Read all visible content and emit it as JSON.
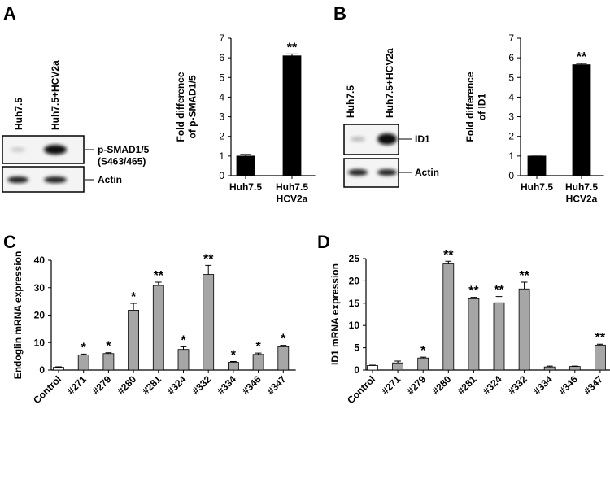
{
  "panels": [
    "A",
    "B",
    "C",
    "D"
  ],
  "blot_a": {
    "lanes": [
      "Huh7.5",
      "Huh7.5+HCV2a"
    ],
    "labels": [
      "p-SMAD1/5\n(S463/465)",
      "Actin"
    ]
  },
  "blot_b": {
    "lanes": [
      "Huh7.5",
      "Huh7.5+HCV2a"
    ],
    "labels": [
      "ID1",
      "Actin"
    ]
  },
  "chart_data": [
    {
      "type": "bar",
      "ylabel": "Fold difference\nof p-SMAD1/5",
      "categories": [
        "Huh7.5",
        "Huh7.5\nHCV2a"
      ],
      "values": [
        1,
        6.1
      ],
      "errors": [
        0.08,
        0.1
      ],
      "annotations": [
        null,
        "**"
      ],
      "colors": [
        "#000000",
        "#000000"
      ],
      "ylim": [
        0,
        7
      ],
      "yticks": [
        0,
        1,
        2,
        3,
        4,
        5,
        6,
        7
      ]
    },
    {
      "type": "bar",
      "ylabel": "Fold difference\nof ID1",
      "categories": [
        "Huh7.5",
        "Huh7.5\nHCV2a"
      ],
      "values": [
        1,
        5.65
      ],
      "errors": [
        0,
        0.06
      ],
      "annotations": [
        null,
        "**"
      ],
      "colors": [
        "#000000",
        "#000000"
      ],
      "ylim": [
        0,
        7
      ],
      "yticks": [
        0,
        1,
        2,
        3,
        4,
        5,
        6,
        7
      ]
    },
    {
      "type": "bar",
      "ylabel": "Endoglin mRNA expression",
      "categories": [
        "Control",
        "#271",
        "#279",
        "#280",
        "#281",
        "#324",
        "#332",
        "#334",
        "#346",
        "#347"
      ],
      "values": [
        1,
        5.5,
        6,
        21.8,
        30.8,
        7.5,
        34.8,
        2.8,
        5.7,
        8.5
      ],
      "errors": [
        0.2,
        0.3,
        0.3,
        2.5,
        1.2,
        1,
        3.3,
        0.3,
        0.5,
        0.5
      ],
      "annotations": [
        null,
        "*",
        "*",
        "*",
        "**",
        "*",
        "**",
        "*",
        "*",
        "*"
      ],
      "colors": [
        "#ffffff",
        "#a6a6a6",
        "#a6a6a6",
        "#a6a6a6",
        "#a6a6a6",
        "#a6a6a6",
        "#a6a6a6",
        "#a6a6a6",
        "#a6a6a6",
        "#a6a6a6"
      ],
      "ylim": [
        0,
        40
      ],
      "yticks": [
        0,
        10,
        20,
        30,
        40
      ]
    },
    {
      "type": "bar",
      "ylabel": "ID1 mRNA expression",
      "categories": [
        "Control",
        "#271",
        "#279",
        "#280",
        "#281",
        "#324",
        "#332",
        "#334",
        "#346",
        "#347"
      ],
      "values": [
        1,
        1.6,
        2.7,
        23.8,
        16,
        15.1,
        18.2,
        0.7,
        0.8,
        5.6
      ],
      "errors": [
        0.1,
        0.4,
        0.2,
        0.6,
        0.3,
        1.4,
        1.5,
        0.2,
        0.1,
        0.2
      ],
      "annotations": [
        null,
        null,
        "*",
        "**",
        "**",
        "**",
        "**",
        null,
        null,
        "**"
      ],
      "colors": [
        "#ffffff",
        "#a6a6a6",
        "#a6a6a6",
        "#a6a6a6",
        "#a6a6a6",
        "#a6a6a6",
        "#a6a6a6",
        "#a6a6a6",
        "#a6a6a6",
        "#a6a6a6"
      ],
      "ylim": [
        0,
        25
      ],
      "yticks": [
        0,
        5,
        10,
        15,
        20,
        25
      ]
    }
  ]
}
